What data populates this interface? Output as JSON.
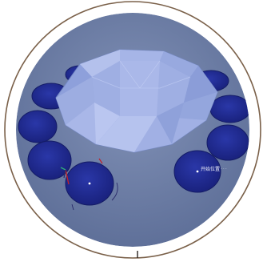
{
  "viewport": {
    "start_label": "开始位置",
    "more_indicator": "···"
  },
  "colors": {
    "bezel": "#7a6049",
    "floor": "#6e7fa6",
    "gem_light": "#a9b8e6",
    "gem_dark": "#7f91cf",
    "disc": "#1f2a8f",
    "disc_edge": "#141c66",
    "gizmo_x": "#c0202a",
    "gizmo_y": "#2faf7a",
    "gizmo_z": "#2a2a6a"
  },
  "icons": {
    "transform_gizmo": "axis-gizmo-icon",
    "bottom_marker": "tick-mark-icon"
  }
}
